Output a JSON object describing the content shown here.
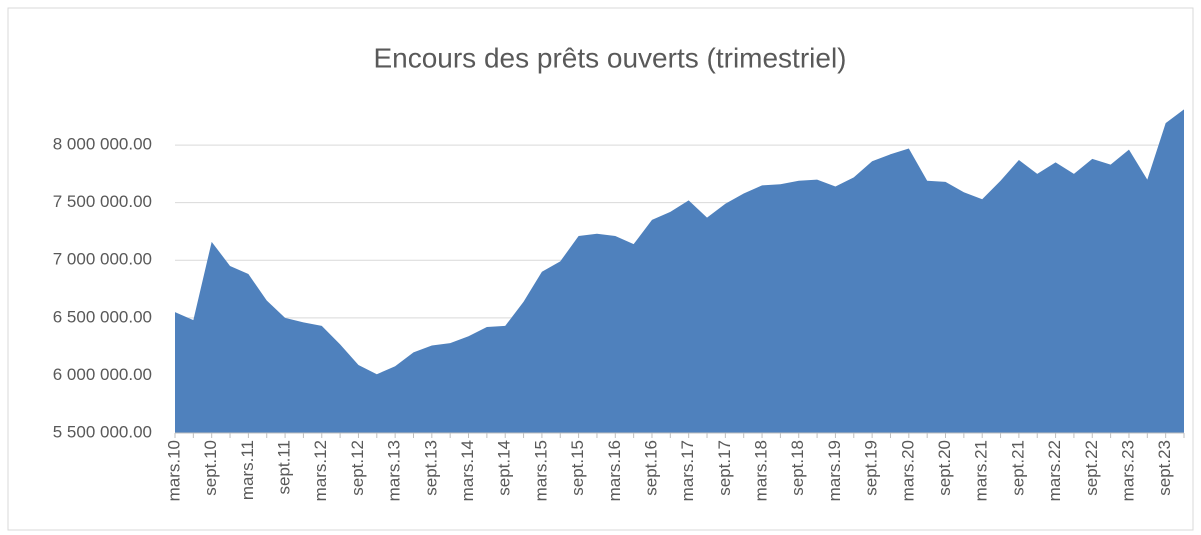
{
  "chart_data": {
    "type": "area",
    "title": "Encours des prêts ouverts (trimestriel)",
    "categories": [
      "mars.10",
      null,
      "sept.10",
      null,
      "mars.11",
      null,
      "sept.11",
      null,
      "mars.12",
      null,
      "sept.12",
      null,
      "mars.13",
      null,
      "sept.13",
      null,
      "mars.14",
      null,
      "sept.14",
      null,
      "mars.15",
      null,
      "sept.15",
      null,
      "mars.16",
      null,
      "sept.16",
      null,
      "mars.17",
      null,
      "sept.17",
      null,
      "mars.18",
      null,
      "sept.18",
      null,
      "mars.19",
      null,
      "sept.19",
      null,
      "mars.20",
      null,
      "sept.20",
      null,
      "mars.21",
      null,
      "sept.21",
      null,
      "mars.22",
      null,
      "sept.22",
      null,
      "mars.23",
      null,
      "sept.23",
      null
    ],
    "values": [
      6550000,
      6480000,
      7160000,
      6950000,
      6880000,
      6650000,
      6500000,
      6460000,
      6430000,
      6270000,
      6090000,
      6010000,
      6080000,
      6200000,
      6260000,
      6280000,
      6340000,
      6420000,
      6430000,
      6640000,
      6900000,
      6990000,
      7210000,
      7230000,
      7210000,
      7140000,
      7350000,
      7420000,
      7520000,
      7370000,
      7490000,
      7580000,
      7650000,
      7660000,
      7690000,
      7700000,
      7640000,
      7720000,
      7860000,
      7920000,
      7970000,
      7690000,
      7680000,
      7590000,
      7530000,
      7690000,
      7870000,
      7750000,
      7850000,
      7750000,
      7880000,
      7830000,
      7960000,
      7700000,
      8190000,
      8310000
    ],
    "color": "#4f81bd",
    "ylim": [
      5500000,
      8400000
    ],
    "yticks": [
      {
        "value": 5500000,
        "label": "5 500 000.00"
      },
      {
        "value": 6000000,
        "label": "6 000 000.00"
      },
      {
        "value": 6500000,
        "label": "6 500 000.00"
      },
      {
        "value": 7000000,
        "label": "7 000 000.00"
      },
      {
        "value": 7500000,
        "label": "7 500 000.00"
      },
      {
        "value": 8000000,
        "label": "8 000 000.00"
      }
    ],
    "grid": true
  }
}
